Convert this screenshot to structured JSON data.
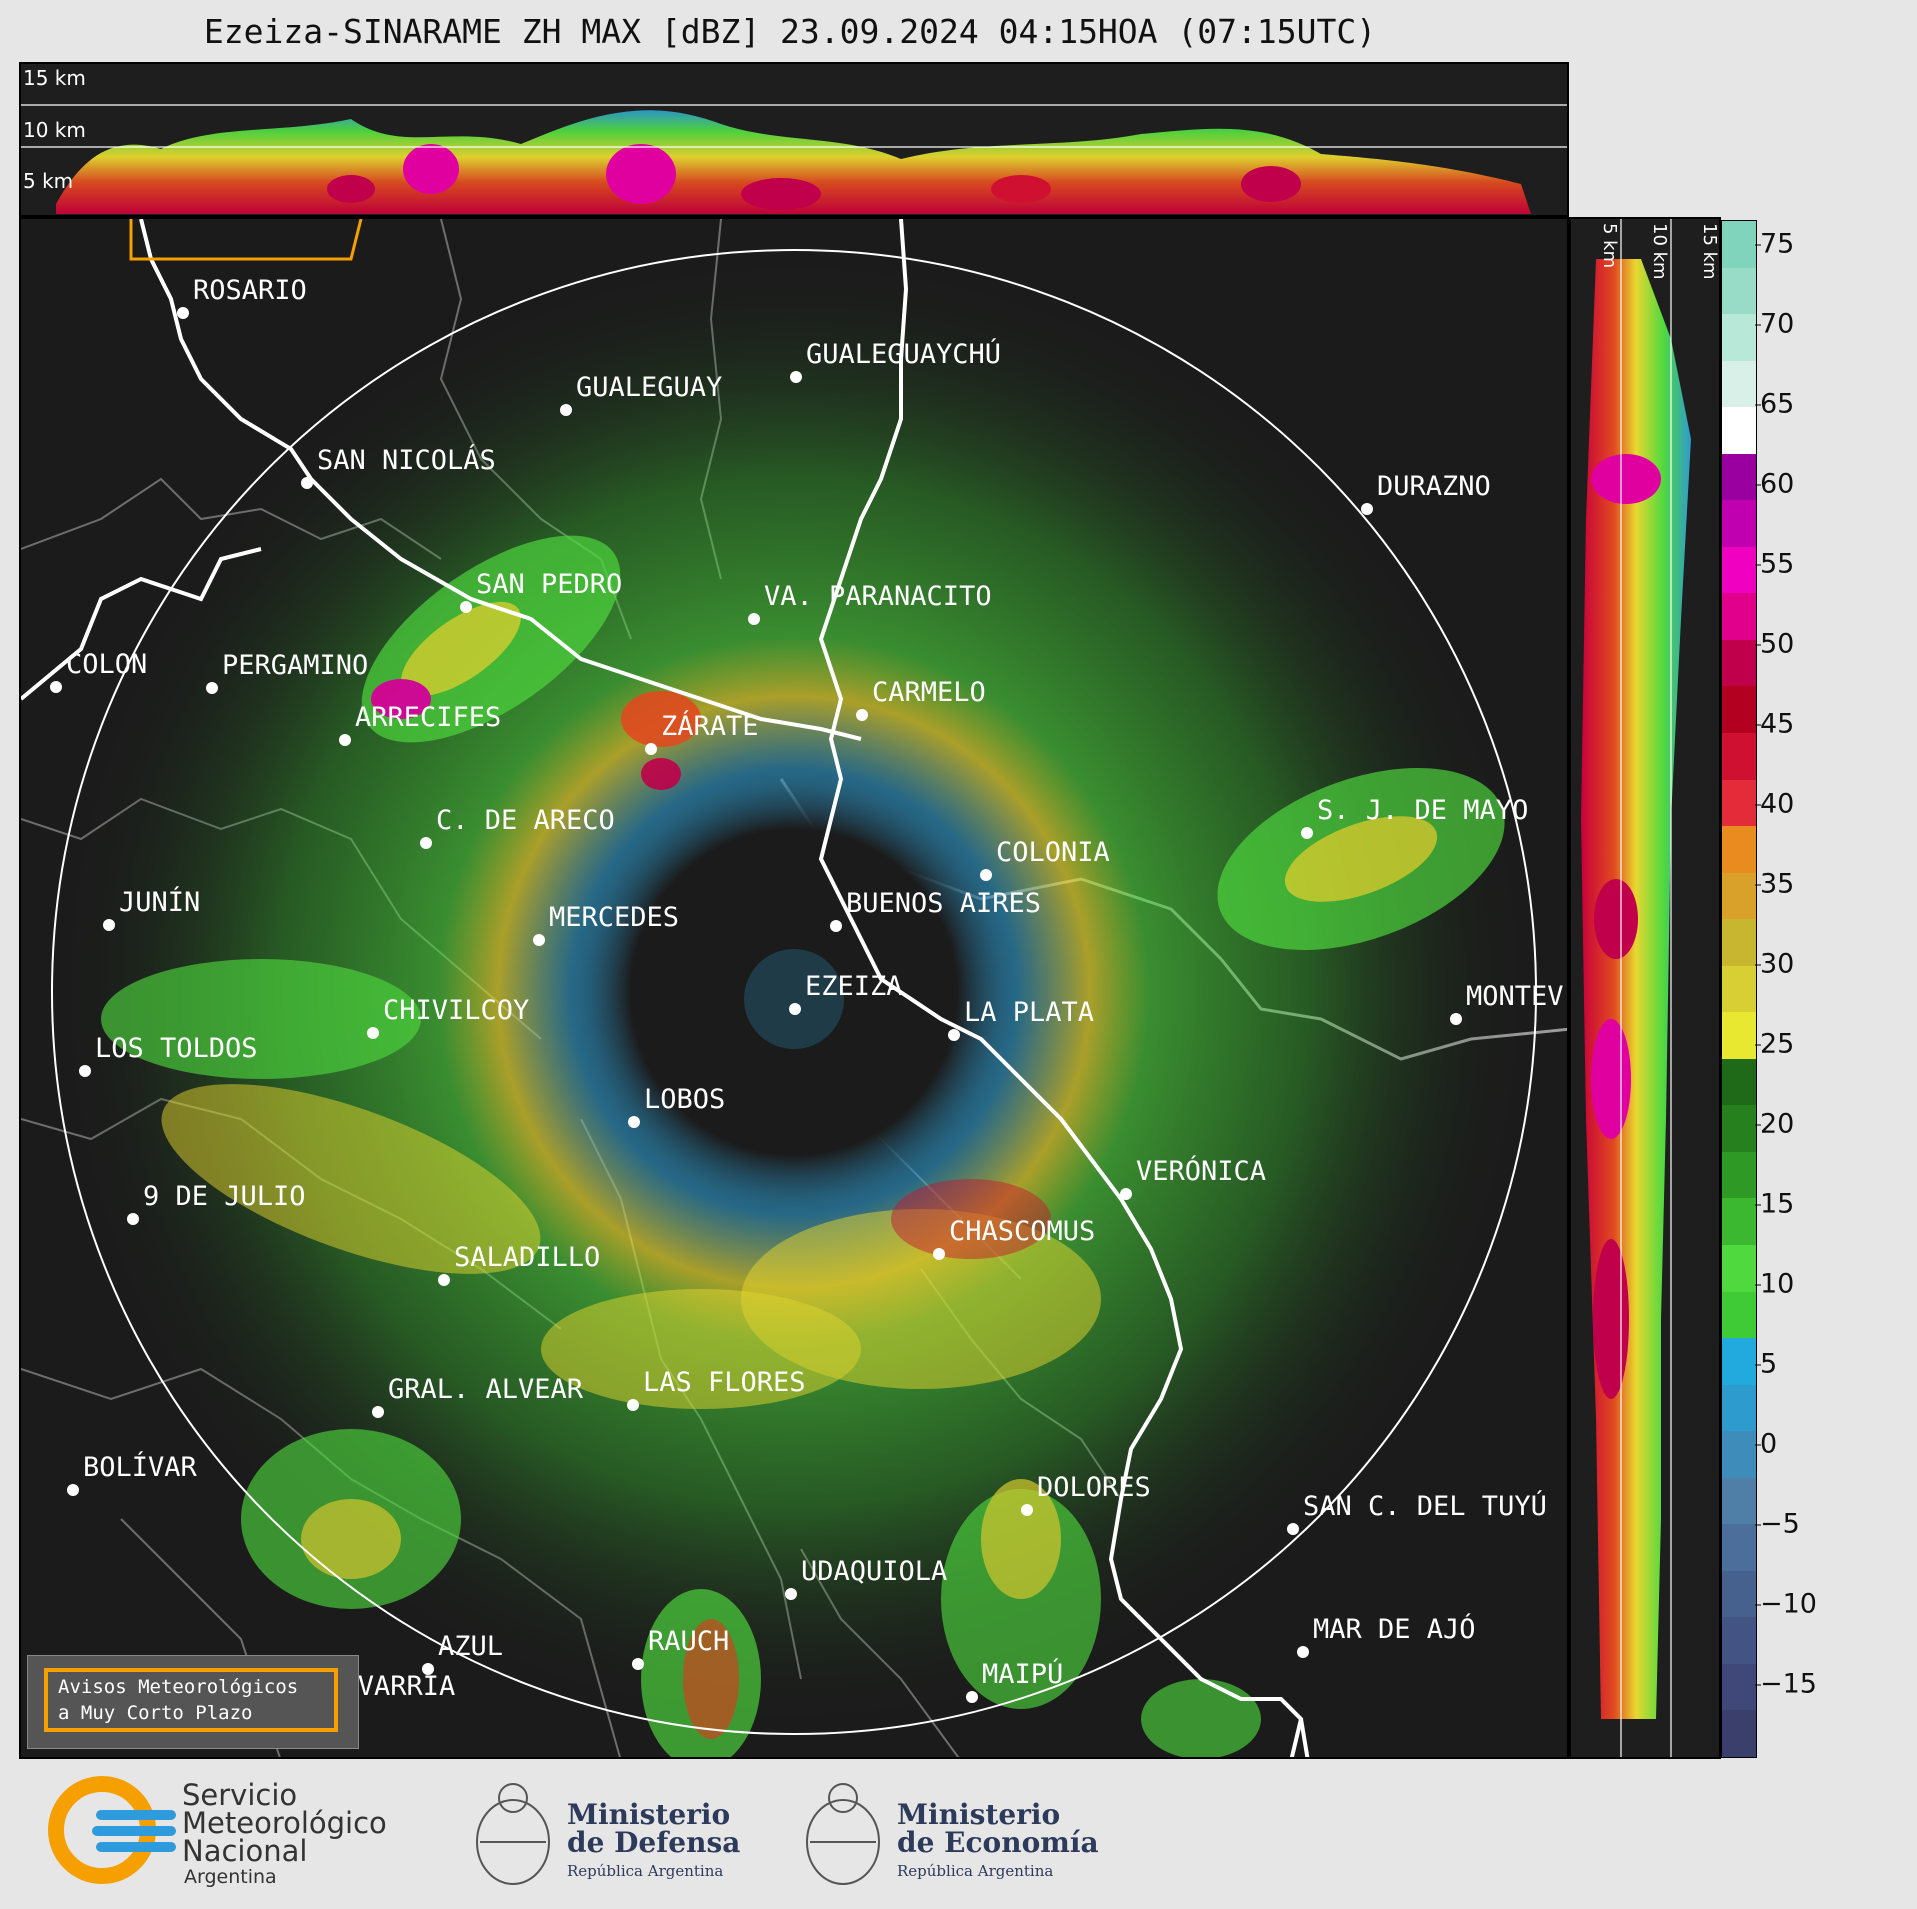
{
  "title": "Ezeiza-SINARAME ZH MAX [dBZ] 23.09.2024 04:15HOA (07:15UTC)",
  "top_panel": {
    "altitude_labels": [
      "15 km",
      "10 km",
      "5 km"
    ]
  },
  "side_panel": {
    "altitude_labels": [
      "5 km",
      "10 km",
      "15 km"
    ]
  },
  "colorbar": {
    "ticks": [
      "75",
      "70",
      "65",
      "60",
      "55",
      "50",
      "45",
      "40",
      "35",
      "30",
      "25",
      "20",
      "15",
      "10",
      "5",
      "0",
      "−5",
      "−10",
      "−15"
    ],
    "colors": [
      "#3b3f6b",
      "#3f4878",
      "#435484",
      "#47618f",
      "#4b6f9a",
      "#4f7ea6",
      "#3d8cba",
      "#2e9bce",
      "#22aadf",
      "#3ecb35",
      "#4fd93f",
      "#3bb82f",
      "#2e9a25",
      "#26801e",
      "#1f6a18",
      "#e8e830",
      "#d8cf32",
      "#c8b630",
      "#d9a02a",
      "#e88c20",
      "#e32b3a",
      "#d01030",
      "#b40020",
      "#c0004a",
      "#e0008c",
      "#f000c0",
      "#c000b0",
      "#9a00a0",
      "#ffffff",
      "#d8f0e8",
      "#b8e8d8",
      "#98dcc8",
      "#80d4bc"
    ]
  },
  "cities": [
    {
      "name": "ROSARIO"
    },
    {
      "name": "GUALEGUAYCHÚ"
    },
    {
      "name": "GUALEGUAY"
    },
    {
      "name": "SAN NICOLÁS"
    },
    {
      "name": "DURAZNO"
    },
    {
      "name": "SAN PEDRO"
    },
    {
      "name": "VA. PARANACITO"
    },
    {
      "name": "COLON"
    },
    {
      "name": "PERGAMINO"
    },
    {
      "name": "CARMELO"
    },
    {
      "name": "ARRECIFES"
    },
    {
      "name": "ZÁRATE"
    },
    {
      "name": "S. J. DE MAYO"
    },
    {
      "name": "C. DE ARECO"
    },
    {
      "name": "COLONIA"
    },
    {
      "name": "JUNÍN"
    },
    {
      "name": "BUENOS AIRES"
    },
    {
      "name": "MERCEDES"
    },
    {
      "name": "EZEIZA"
    },
    {
      "name": "MONTEV"
    },
    {
      "name": "CHIVILCOY"
    },
    {
      "name": "LA PLATA"
    },
    {
      "name": "LOS TOLDOS"
    },
    {
      "name": "LOBOS"
    },
    {
      "name": "VERÓNICA"
    },
    {
      "name": "9 DE JULIO"
    },
    {
      "name": "CHASCOMUS"
    },
    {
      "name": "SALADILLO"
    },
    {
      "name": "GRAL. ALVEAR"
    },
    {
      "name": "LAS FLORES"
    },
    {
      "name": "BOLÍVAR"
    },
    {
      "name": "DOLORES"
    },
    {
      "name": "SAN C. DEL TUYÚ"
    },
    {
      "name": "UDAQUIOLA"
    },
    {
      "name": "MAR DE AJÓ"
    },
    {
      "name": "AZUL"
    },
    {
      "name": "RAUCH"
    },
    {
      "name": "OLAVARRÍA"
    },
    {
      "name": "MAIPÚ"
    }
  ],
  "warning": {
    "line1": "Avisos Meteorológicos",
    "line2": "a Muy Corto Plazo"
  },
  "footer": {
    "smn": {
      "line1": "Servicio",
      "line2": "Meteorológico",
      "line3": "Nacional",
      "line4": "Argentina"
    },
    "defensa": {
      "line1": "Ministerio",
      "line2": "de Defensa",
      "sub": "República Argentina"
    },
    "economia": {
      "line1": "Ministerio",
      "line2": "de Economía",
      "sub": "República Argentina"
    }
  }
}
